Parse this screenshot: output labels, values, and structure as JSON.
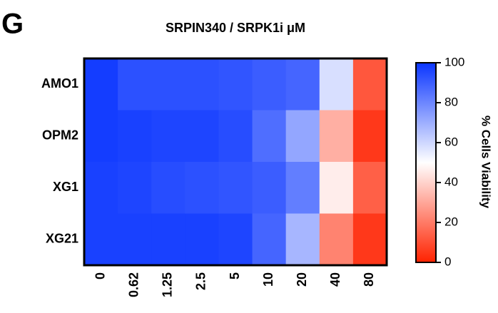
{
  "chart_data": {
    "type": "heatmap",
    "panel_label": "G",
    "title": "SRPIN340 / SRPK1i μM",
    "x_categories": [
      "0",
      "0.62",
      "1.25",
      "2.5",
      "5",
      "10",
      "20",
      "40",
      "80"
    ],
    "y_categories": [
      "AMO1",
      "OPM2",
      "XG1",
      "XG21"
    ],
    "values": [
      [
        98,
        93,
        93,
        93,
        92,
        90,
        88,
        58,
        12
      ],
      [
        98,
        97,
        96,
        96,
        94,
        86,
        72,
        32,
        5
      ],
      [
        97,
        96,
        94,
        93,
        92,
        90,
        82,
        46,
        14
      ],
      [
        97,
        97,
        97,
        97,
        96,
        88,
        68,
        22,
        5
      ]
    ],
    "colorscale": [
      "#ff2200",
      "#ffffff",
      "#0a35ff"
    ],
    "zlim": [
      0,
      100
    ],
    "zticks": [
      0,
      20,
      40,
      60,
      80,
      100
    ],
    "colorbar_label": "% Cells Viability"
  }
}
